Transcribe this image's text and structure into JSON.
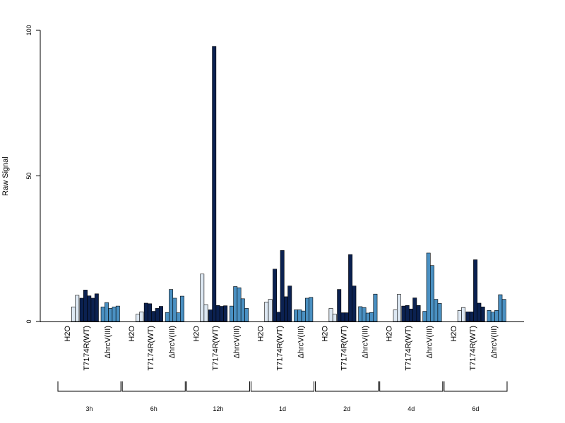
{
  "chart_data": {
    "type": "bar",
    "ylabel": "Raw Signal",
    "ylim": [
      0,
      100
    ],
    "yticks": [
      0,
      50,
      100
    ],
    "treatments": [
      "H2O",
      "T7174R(WT)",
      "ΔhrcV(III)"
    ],
    "treatment_colors": {
      "H2O": [
        "#ffffff",
        "#dde8f3"
      ],
      "T7174R(WT)": [
        "#0b2150"
      ],
      "ΔhrcV(III)": [
        "#4a90c2"
      ]
    },
    "timepoints": [
      {
        "label": "3h",
        "values": {
          "H2O": [
            0,
            5,
            9
          ],
          "T7174R(WT)": [
            8,
            10.8,
            8.8,
            8,
            9.5
          ],
          "ΔhrcV(III)": [
            5,
            6.5,
            4.5,
            5,
            5.3
          ]
        }
      },
      {
        "label": "6h",
        "values": {
          "H2O": [
            0,
            2.5,
            3.3
          ],
          "T7174R(WT)": [
            6.3,
            6.1,
            3.5,
            4.5,
            5.2
          ],
          "ΔhrcV(III)": [
            3.1,
            11,
            8,
            3,
            8.7
          ]
        }
      },
      {
        "label": "12h",
        "values": {
          "H2O": [
            0,
            16.3,
            5.8
          ],
          "T7174R(WT)": [
            4,
            94.5,
            5.5,
            5.2,
            5.4
          ],
          "ΔhrcV(III)": [
            5.3,
            12,
            11.6,
            7.8,
            4.5
          ]
        }
      },
      {
        "label": "1d",
        "values": {
          "H2O": [
            0,
            6.7,
            7.6
          ],
          "T7174R(WT)": [
            18,
            3.2,
            24.4,
            8.5,
            12.2
          ],
          "ΔhrcV(III)": [
            4,
            4,
            3.6,
            8,
            8.3
          ]
        }
      },
      {
        "label": "2d",
        "values": {
          "H2O": [
            0,
            4.5,
            2.5
          ],
          "T7174R(WT)": [
            11,
            3,
            3,
            23,
            12.2
          ],
          "ΔhrcV(III)": [
            5.1,
            4.8,
            2.9,
            3.1,
            9.4
          ]
        }
      },
      {
        "label": "4d",
        "values": {
          "H2O": [
            0,
            4,
            9.3
          ],
          "T7174R(WT)": [
            5.3,
            5.5,
            4.3,
            8.1,
            5.5
          ],
          "ΔhrcV(III)": [
            3.5,
            23.5,
            19.2,
            7.6,
            6.2
          ]
        }
      },
      {
        "label": "6d",
        "values": {
          "H2O": [
            0,
            3.8,
            4.8
          ],
          "T7174R(WT)": [
            3.3,
            3.3,
            21.2,
            6.3,
            5
          ],
          "ΔhrcV(III)": [
            3.8,
            3.2,
            3.8,
            9.2,
            7.6
          ]
        }
      }
    ]
  }
}
